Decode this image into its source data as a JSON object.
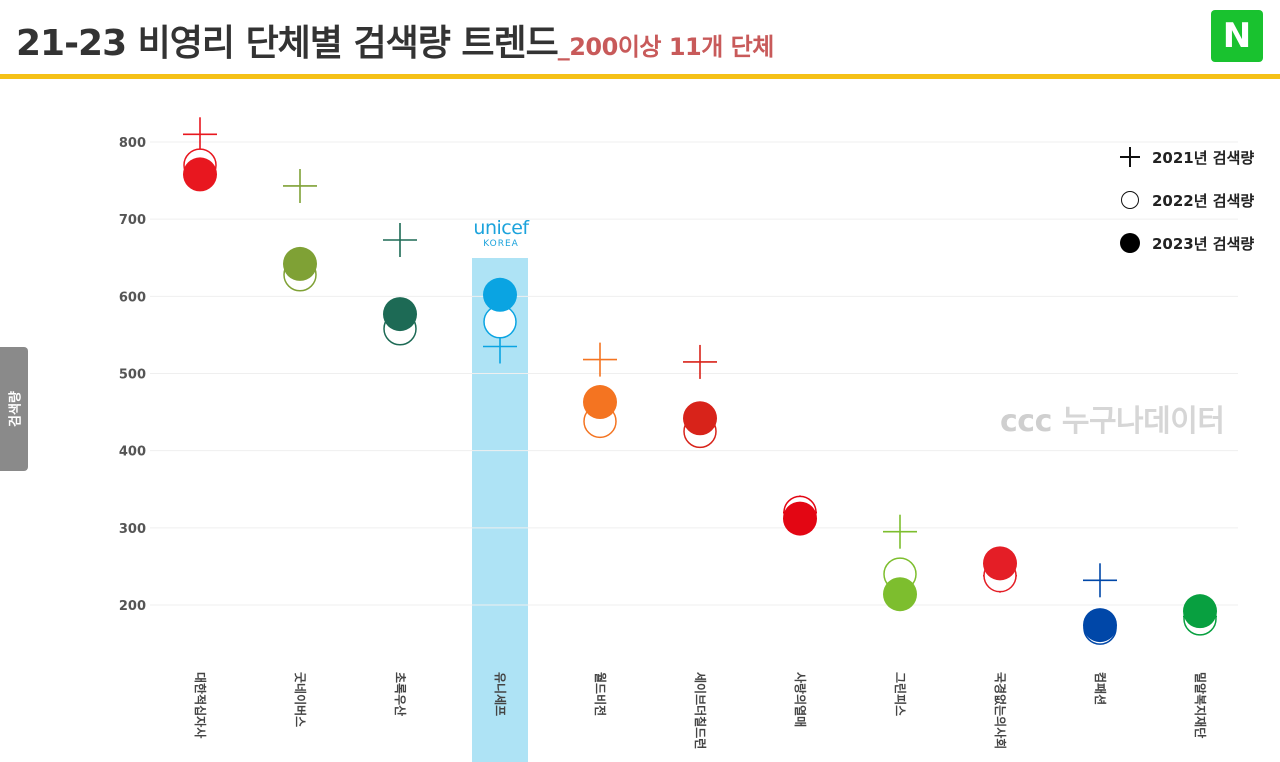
{
  "header": {
    "title": "21-23 비영리 단체별 검색량 트렌드",
    "subtitle": "_200이상 11개 단체",
    "naver_logo": "N",
    "accent_color": "#f5c117",
    "naver_color": "#19c22f"
  },
  "side_tab": {
    "label": "검색량"
  },
  "watermark": {
    "mark": "ᴄᴄᴄ",
    "text": "누구나데이터"
  },
  "highlight": {
    "logo_text": "unicef",
    "logo_sub": "KOREA",
    "color": "#aee3f5"
  },
  "legend": [
    {
      "label": "2021년 검색량",
      "icon": "plus-icon"
    },
    {
      "label": "2022년 검색량",
      "icon": "ring-icon"
    },
    {
      "label": "2023년 검색량",
      "icon": "dot-icon"
    }
  ],
  "chart_data": {
    "type": "scatter",
    "ylim": [
      110,
      810
    ],
    "yticks": [
      200,
      300,
      400,
      500,
      600,
      700,
      800
    ],
    "highlight_index": 3,
    "categories": [
      "대한적십자사",
      "굿네이버스",
      "초록우산",
      "유니세프",
      "월드비전",
      "세이브더칠드런",
      "사랑의열매",
      "그린피스",
      "국경없는의사회",
      "컴패션",
      "밀알복지재단"
    ],
    "colors": [
      "#e8171f",
      "#7fa135",
      "#1d6a55",
      "#0aa4e2",
      "#f47421",
      "#d8231a",
      "#e30613",
      "#7dbe2e",
      "#e41e26",
      "#0047a8",
      "#08a040"
    ],
    "series": [
      {
        "name": "2021년 검색량",
        "marker": "plus",
        "values": [
          810,
          743,
          673,
          535,
          518,
          515,
          320,
          295,
          238,
          232,
          185
        ]
      },
      {
        "name": "2022년 검색량",
        "marker": "ring",
        "values": [
          770,
          628,
          558,
          567,
          438,
          425,
          320,
          240,
          238,
          170,
          182
        ]
      },
      {
        "name": "2023년 검색량",
        "marker": "filled",
        "values": [
          758,
          642,
          577,
          602,
          463,
          442,
          312,
          214,
          254,
          174,
          192
        ]
      }
    ]
  }
}
